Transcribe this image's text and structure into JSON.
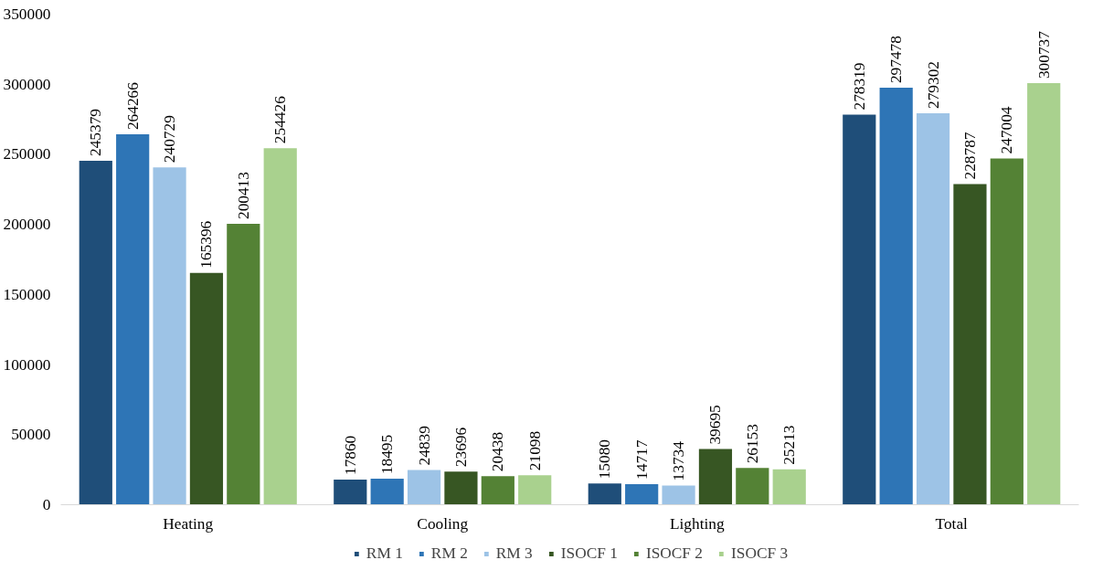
{
  "chart_data": {
    "type": "bar",
    "categories": [
      "Heating",
      "Cooling",
      "Lighting",
      "Total"
    ],
    "series": [
      {
        "name": "RM 1",
        "color": "#1f4e79",
        "values": [
          245379,
          17860,
          15080,
          278319
        ]
      },
      {
        "name": "RM 2",
        "color": "#2e75b6",
        "values": [
          264266,
          18495,
          14717,
          297478
        ]
      },
      {
        "name": "RM 3",
        "color": "#9dc3e6",
        "values": [
          240729,
          24839,
          13734,
          279302
        ]
      },
      {
        "name": "ISOCF 1",
        "color": "#375623",
        "values": [
          165396,
          23696,
          39695,
          228787
        ]
      },
      {
        "name": "ISOCF 2",
        "color": "#548235",
        "values": [
          200413,
          20438,
          26153,
          247004
        ]
      },
      {
        "name": "ISOCF 3",
        "color": "#a9d18e",
        "values": [
          254426,
          21098,
          25213,
          300737
        ]
      }
    ],
    "ylim": [
      0,
      350000
    ],
    "yticks": [
      0,
      50000,
      100000,
      150000,
      200000,
      250000,
      300000,
      350000
    ],
    "data_labels": true,
    "legend": "bottom",
    "grid": false
  }
}
